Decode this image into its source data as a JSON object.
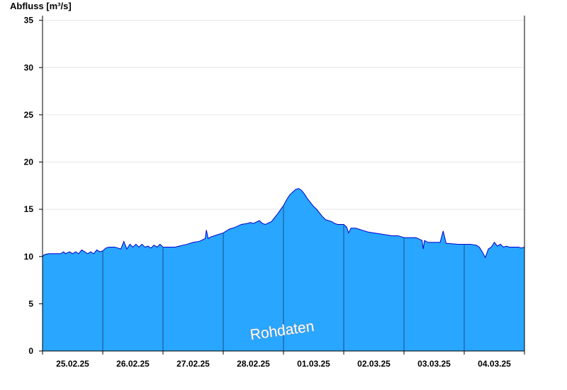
{
  "chart_data": {
    "type": "area",
    "ylabel": "Abfluss [m³/s]",
    "ylim": [
      0,
      35.5
    ],
    "yticks": [
      0,
      5,
      10,
      15,
      20,
      25,
      30,
      35
    ],
    "x_day_labels": [
      "25.02.25",
      "26.02.25",
      "27.02.25",
      "28.02.25",
      "01.03.25",
      "02.03.25",
      "03.03.25",
      "04.03.25"
    ],
    "grid": true,
    "fill_color": "#29A6FF",
    "line_color": "#0000CC",
    "watermark": "Rohdaten",
    "series": [
      {
        "x": [
          0.0,
          0.03,
          0.1,
          0.3,
          0.35,
          0.38,
          0.45,
          0.5,
          0.55,
          0.6,
          0.65,
          0.75,
          0.8,
          0.85,
          0.9,
          0.95,
          1.0,
          1.05,
          1.1,
          1.2,
          1.3,
          1.35,
          1.4,
          1.45,
          1.5,
          1.55,
          1.6,
          1.65,
          1.7,
          1.75,
          1.8,
          1.85,
          1.9,
          1.95,
          2.0,
          2.2,
          2.4,
          2.5,
          2.6,
          2.7,
          2.72,
          2.75,
          2.8,
          2.9,
          3.0,
          3.1,
          3.2,
          3.3,
          3.4,
          3.45,
          3.5,
          3.6,
          3.65,
          3.7,
          3.8,
          3.9,
          4.0,
          4.05,
          4.1,
          4.15,
          4.2,
          4.25,
          4.3,
          4.35,
          4.4,
          4.5,
          4.55,
          4.6,
          4.65,
          4.7,
          4.75,
          4.8,
          4.85,
          4.9,
          4.95,
          5.0,
          5.05,
          5.08,
          5.12,
          5.2,
          5.3,
          5.4,
          5.5,
          5.6,
          5.7,
          5.8,
          5.9,
          6.0,
          6.2,
          6.3,
          6.32,
          6.34,
          6.4,
          6.6,
          6.65,
          6.7,
          6.9,
          7.0,
          7.1,
          7.2,
          7.25,
          7.3,
          7.35,
          7.4,
          7.45,
          7.5,
          7.55,
          7.6,
          7.65,
          7.7,
          7.75,
          7.8,
          7.9,
          7.95,
          8.0
        ],
        "values": [
          10.0,
          10.2,
          10.3,
          10.3,
          10.5,
          10.3,
          10.5,
          10.3,
          10.5,
          10.3,
          10.7,
          10.3,
          10.5,
          10.3,
          10.7,
          10.5,
          10.6,
          10.9,
          11.0,
          11.0,
          10.8,
          11.6,
          10.8,
          11.3,
          11.0,
          11.3,
          11.0,
          11.3,
          11.0,
          11.1,
          10.9,
          11.2,
          11.0,
          11.3,
          11.0,
          11.0,
          11.3,
          11.5,
          11.6,
          11.9,
          12.8,
          11.9,
          12.1,
          12.3,
          12.5,
          12.9,
          13.1,
          13.4,
          13.5,
          13.6,
          13.5,
          13.8,
          13.5,
          13.4,
          13.7,
          14.5,
          15.4,
          16.0,
          16.5,
          16.8,
          17.1,
          17.2,
          17.0,
          16.6,
          16.1,
          15.3,
          15.0,
          14.6,
          14.2,
          13.9,
          13.8,
          13.7,
          13.5,
          13.4,
          13.4,
          13.4,
          13.1,
          12.5,
          13.0,
          13.0,
          12.8,
          12.6,
          12.5,
          12.4,
          12.3,
          12.2,
          12.2,
          12.0,
          12.0,
          11.7,
          10.8,
          11.7,
          11.5,
          11.5,
          12.7,
          11.4,
          11.3,
          11.3,
          11.3,
          11.2,
          11.0,
          10.5,
          9.9,
          10.8,
          11.0,
          11.5,
          11.1,
          11.3,
          11.0,
          11.1,
          11.0,
          11.0,
          11.0,
          10.9,
          11.0
        ]
      }
    ]
  }
}
